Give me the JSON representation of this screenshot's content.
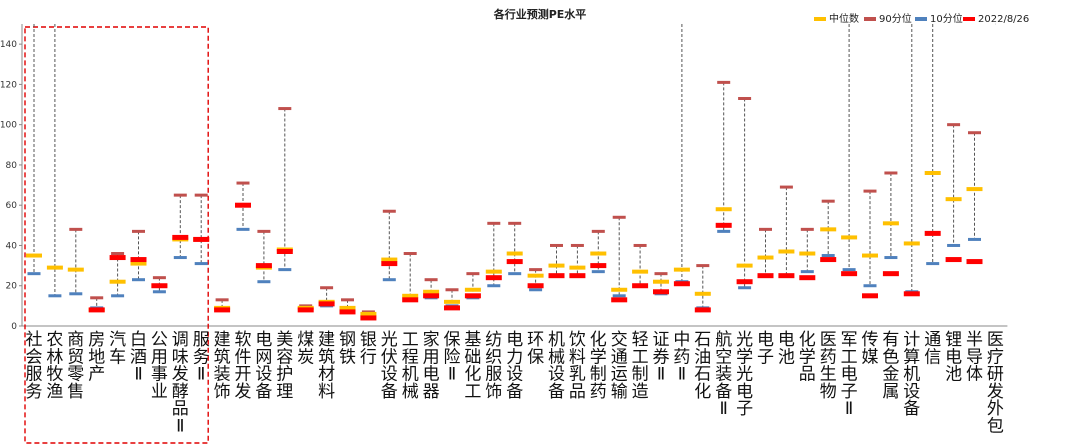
{
  "chart_data": {
    "type": "range-dot",
    "title": "各行业预测PE水平",
    "ylim": [
      0,
      150
    ],
    "yticks": [
      0,
      20,
      40,
      60,
      80,
      100,
      120,
      140
    ],
    "legend": [
      {
        "name": "中位数",
        "color": "#FFC000"
      },
      {
        "name": "90分位",
        "color": "#C0504D"
      },
      {
        "name": "10分位",
        "color": "#4F81BD"
      },
      {
        "name": "2022/8/26",
        "color": "#FF0000"
      }
    ],
    "highlight_box": {
      "from_category": "社会服务",
      "to_category": "服务"
    },
    "categories": [
      "社会服务",
      "农林牧渔",
      "商贸零售",
      "房地产",
      "汽车",
      "白酒Ⅱ",
      "公用事业",
      "调味发酵品Ⅱ",
      "服务Ⅱ",
      "建筑装饰",
      "软件开发",
      "电网设备",
      "美容护理",
      "煤炭",
      "建筑材料",
      "钢铁",
      "银行",
      "光伏设备",
      "工程机械",
      "家用电器",
      "保险Ⅱ",
      "基础化工",
      "纺织服饰",
      "电力设备",
      "环保",
      "机械设备",
      "饮料乳品",
      "化学制药",
      "交通运输",
      "轻工制造",
      "证券Ⅱ",
      "中药Ⅱ",
      "石油石化",
      "航空装备Ⅱ",
      "光学光电子",
      "电子",
      "电池",
      "化学品",
      "医药生物",
      "军工电子Ⅱ",
      "传媒",
      "有色金属",
      "计算机设备",
      "通信",
      "锂电池",
      "半导体",
      "医疗研发外包"
    ],
    "series": [
      {
        "name": "90分位",
        "values": [
          150,
          150,
          48,
          14,
          36,
          47,
          24,
          65,
          65,
          13,
          71,
          47,
          108,
          10,
          19,
          13,
          7,
          57,
          36,
          23,
          18,
          26,
          51,
          51,
          28,
          40,
          40,
          47,
          54,
          40,
          26,
          150,
          30,
          121,
          113,
          48,
          69,
          48,
          62,
          150,
          67,
          76,
          150,
          150,
          100,
          96,
          150
        ]
      },
      {
        "name": "中位数",
        "values": [
          35,
          29,
          28,
          8,
          22,
          31,
          20,
          43,
          43,
          9,
          60,
          29,
          38,
          9,
          12,
          9,
          6,
          33,
          15,
          17,
          12,
          18,
          27,
          36,
          25,
          30,
          29,
          36,
          18,
          27,
          22,
          28,
          16,
          58,
          30,
          34,
          37,
          36,
          48,
          44,
          35,
          51,
          41,
          76,
          63,
          68,
          150
        ]
      },
      {
        "name": "10分位",
        "values": [
          26,
          15,
          16,
          9,
          15,
          23,
          17,
          34,
          31,
          8,
          48,
          22,
          28,
          8,
          10,
          8,
          5,
          23,
          14,
          14,
          10,
          14,
          20,
          26,
          18,
          25,
          25,
          27,
          15,
          20,
          16,
          22,
          9,
          47,
          19,
          25,
          25,
          27,
          35,
          28,
          20,
          34,
          17,
          31,
          40,
          43,
          150
        ]
      },
      {
        "name": "2022/8/26",
        "values": [
          150,
          150,
          150,
          8,
          34,
          33,
          20,
          44,
          43,
          8,
          60,
          30,
          37,
          8,
          11,
          7,
          4,
          31,
          13,
          15,
          9,
          15,
          24,
          32,
          20,
          25,
          25,
          30,
          13,
          20,
          17,
          21,
          8,
          50,
          22,
          25,
          25,
          24,
          33,
          26,
          15,
          26,
          16,
          46,
          33,
          32,
          150
        ]
      }
    ],
    "visible_markers": {
      "中位数": [
        1,
        1,
        1,
        1,
        1,
        1,
        1,
        1,
        1,
        1,
        1,
        1,
        1,
        1,
        1,
        1,
        1,
        1,
        1,
        1,
        1,
        1,
        1,
        1,
        1,
        1,
        1,
        1,
        1,
        1,
        1,
        1,
        1,
        1,
        1,
        1,
        1,
        1,
        1,
        1,
        1,
        1,
        1,
        1,
        1,
        1,
        0
      ],
      "10分位": [
        1,
        1,
        1,
        1,
        1,
        1,
        1,
        1,
        1,
        1,
        1,
        1,
        1,
        1,
        1,
        1,
        1,
        1,
        1,
        1,
        1,
        1,
        1,
        1,
        1,
        1,
        1,
        1,
        1,
        1,
        1,
        1,
        1,
        1,
        1,
        1,
        1,
        1,
        1,
        1,
        1,
        1,
        1,
        1,
        1,
        1,
        0
      ],
      "90分位": [
        0,
        0,
        1,
        1,
        1,
        1,
        1,
        1,
        1,
        1,
        1,
        1,
        1,
        1,
        1,
        1,
        1,
        1,
        1,
        1,
        1,
        1,
        1,
        1,
        1,
        1,
        1,
        1,
        1,
        1,
        1,
        0,
        1,
        1,
        1,
        1,
        1,
        1,
        1,
        0,
        1,
        1,
        0,
        0,
        1,
        1,
        0
      ],
      "2022/8/26": [
        0,
        0,
        0,
        1,
        1,
        1,
        1,
        1,
        1,
        1,
        1,
        1,
        1,
        1,
        1,
        1,
        1,
        1,
        1,
        1,
        1,
        1,
        1,
        1,
        1,
        1,
        1,
        1,
        1,
        1,
        1,
        1,
        1,
        1,
        1,
        1,
        1,
        1,
        1,
        1,
        1,
        1,
        1,
        1,
        1,
        1,
        0
      ]
    }
  }
}
